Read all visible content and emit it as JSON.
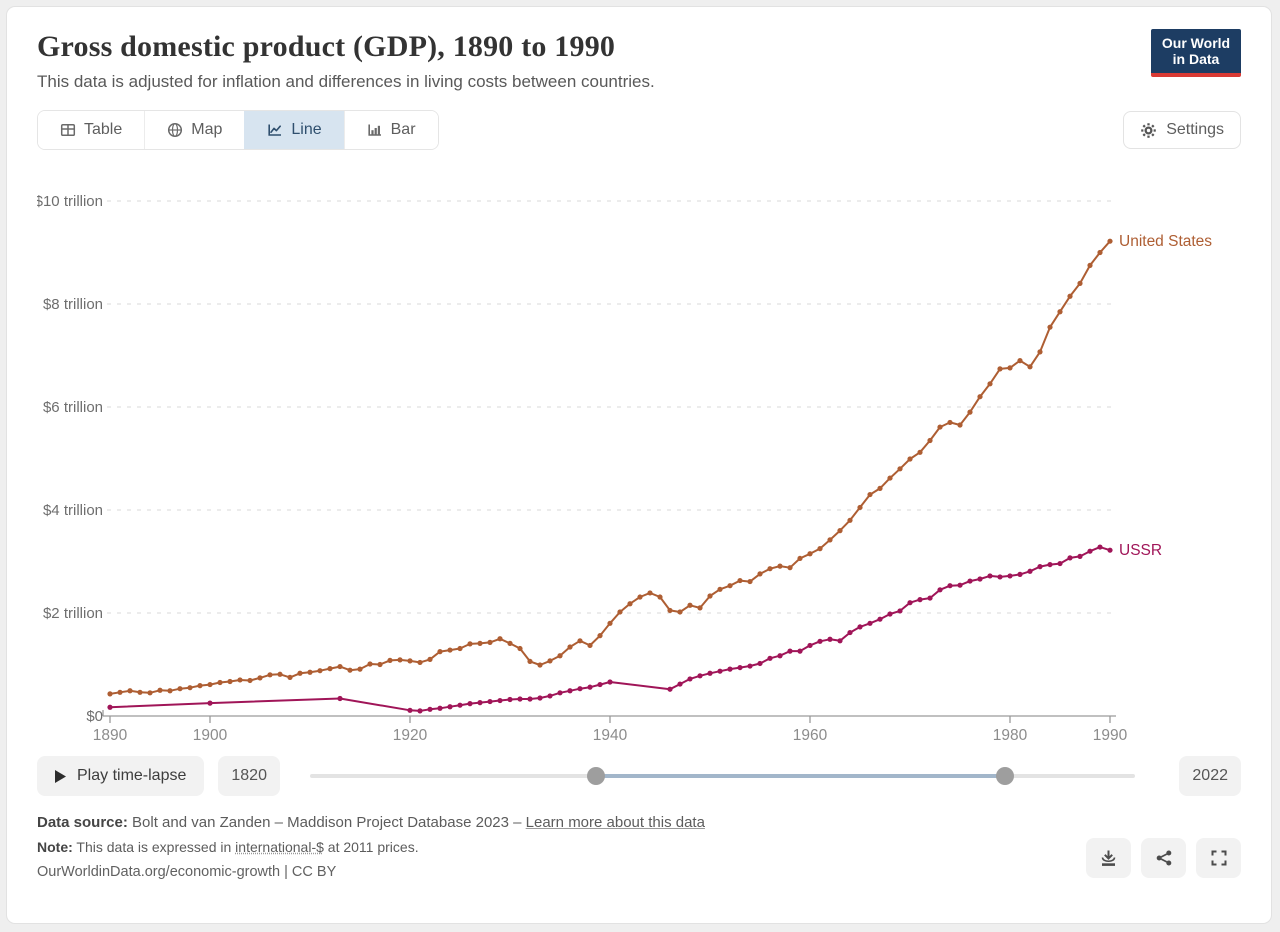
{
  "header": {
    "title": "Gross domestic product (GDP), 1890 to 1990",
    "subtitle": "This data is adjusted for inflation and differences in living costs between countries.",
    "logo": {
      "line1": "Our World",
      "line2": "in Data"
    }
  },
  "toolbar": {
    "tabs": [
      {
        "label": "Table",
        "icon": "table-icon",
        "active": false
      },
      {
        "label": "Map",
        "icon": "globe-icon",
        "active": false
      },
      {
        "label": "Line",
        "icon": "line-chart-icon",
        "active": true
      },
      {
        "label": "Bar",
        "icon": "bar-chart-icon",
        "active": false
      }
    ],
    "settings_label": "Settings"
  },
  "chart_data": {
    "type": "line",
    "title": "Gross domestic product (GDP), 1890 to 1990",
    "xlabel": "",
    "ylabel": "",
    "unit": "international-$ at 2011 prices",
    "xlim": [
      1890,
      1990
    ],
    "ylim": [
      0,
      10
    ],
    "grid": true,
    "legend_position": "end-of-line",
    "yticks": [
      {
        "value": 0,
        "label": "$0"
      },
      {
        "value": 2,
        "label": "$2 trillion"
      },
      {
        "value": 4,
        "label": "$4 trillion"
      },
      {
        "value": 6,
        "label": "$6 trillion"
      },
      {
        "value": 8,
        "label": "$8 trillion"
      },
      {
        "value": 10,
        "label": "$10 trillion"
      }
    ],
    "xticks": [
      1890,
      1900,
      1920,
      1940,
      1960,
      1980,
      1990
    ],
    "axis_color": "#9a9a9a",
    "grid_color": "#d9d9d9",
    "series": [
      {
        "name": "United States",
        "color": "#ae5e33",
        "points": [
          [
            1890,
            0.43
          ],
          [
            1891,
            0.46
          ],
          [
            1892,
            0.49
          ],
          [
            1893,
            0.46
          ],
          [
            1894,
            0.45
          ],
          [
            1895,
            0.5
          ],
          [
            1896,
            0.49
          ],
          [
            1897,
            0.53
          ],
          [
            1898,
            0.55
          ],
          [
            1899,
            0.59
          ],
          [
            1900,
            0.61
          ],
          [
            1901,
            0.65
          ],
          [
            1902,
            0.67
          ],
          [
            1903,
            0.7
          ],
          [
            1904,
            0.69
          ],
          [
            1905,
            0.74
          ],
          [
            1906,
            0.8
          ],
          [
            1907,
            0.81
          ],
          [
            1908,
            0.75
          ],
          [
            1909,
            0.83
          ],
          [
            1910,
            0.85
          ],
          [
            1911,
            0.88
          ],
          [
            1912,
            0.92
          ],
          [
            1913,
            0.96
          ],
          [
            1914,
            0.89
          ],
          [
            1915,
            0.91
          ],
          [
            1916,
            1.01
          ],
          [
            1917,
            1.0
          ],
          [
            1918,
            1.08
          ],
          [
            1919,
            1.09
          ],
          [
            1920,
            1.07
          ],
          [
            1921,
            1.04
          ],
          [
            1922,
            1.1
          ],
          [
            1923,
            1.25
          ],
          [
            1924,
            1.28
          ],
          [
            1925,
            1.31
          ],
          [
            1926,
            1.4
          ],
          [
            1927,
            1.41
          ],
          [
            1928,
            1.43
          ],
          [
            1929,
            1.5
          ],
          [
            1930,
            1.41
          ],
          [
            1931,
            1.31
          ],
          [
            1932,
            1.06
          ],
          [
            1933,
            0.99
          ],
          [
            1934,
            1.07
          ],
          [
            1935,
            1.17
          ],
          [
            1936,
            1.34
          ],
          [
            1937,
            1.46
          ],
          [
            1938,
            1.37
          ],
          [
            1939,
            1.56
          ],
          [
            1940,
            1.8
          ],
          [
            1941,
            2.02
          ],
          [
            1942,
            2.18
          ],
          [
            1943,
            2.31
          ],
          [
            1944,
            2.39
          ],
          [
            1945,
            2.31
          ],
          [
            1946,
            2.05
          ],
          [
            1947,
            2.02
          ],
          [
            1948,
            2.15
          ],
          [
            1949,
            2.1
          ],
          [
            1950,
            2.33
          ],
          [
            1951,
            2.46
          ],
          [
            1952,
            2.53
          ],
          [
            1953,
            2.63
          ],
          [
            1954,
            2.61
          ],
          [
            1955,
            2.76
          ],
          [
            1956,
            2.86
          ],
          [
            1957,
            2.91
          ],
          [
            1958,
            2.88
          ],
          [
            1959,
            3.06
          ],
          [
            1960,
            3.15
          ],
          [
            1961,
            3.25
          ],
          [
            1962,
            3.42
          ],
          [
            1963,
            3.6
          ],
          [
            1964,
            3.8
          ],
          [
            1965,
            4.05
          ],
          [
            1966,
            4.3
          ],
          [
            1967,
            4.42
          ],
          [
            1968,
            4.62
          ],
          [
            1969,
            4.8
          ],
          [
            1970,
            4.99
          ],
          [
            1971,
            5.12
          ],
          [
            1972,
            5.35
          ],
          [
            1973,
            5.61
          ],
          [
            1974,
            5.7
          ],
          [
            1975,
            5.65
          ],
          [
            1976,
            5.9
          ],
          [
            1977,
            6.2
          ],
          [
            1978,
            6.45
          ],
          [
            1979,
            6.74
          ],
          [
            1980,
            6.76
          ],
          [
            1981,
            6.9
          ],
          [
            1982,
            6.78
          ],
          [
            1983,
            7.07
          ],
          [
            1984,
            7.55
          ],
          [
            1985,
            7.85
          ],
          [
            1986,
            8.15
          ],
          [
            1987,
            8.4
          ],
          [
            1988,
            8.75
          ],
          [
            1989,
            9.0
          ],
          [
            1990,
            9.22
          ]
        ]
      },
      {
        "name": "USSR",
        "color": "#a01558",
        "points": [
          [
            1890,
            0.17
          ],
          [
            1900,
            0.25
          ],
          [
            1913,
            0.34
          ],
          [
            1920,
            0.11
          ],
          [
            1921,
            0.1
          ],
          [
            1922,
            0.13
          ],
          [
            1923,
            0.15
          ],
          [
            1924,
            0.18
          ],
          [
            1925,
            0.21
          ],
          [
            1926,
            0.24
          ],
          [
            1927,
            0.26
          ],
          [
            1928,
            0.28
          ],
          [
            1929,
            0.3
          ],
          [
            1930,
            0.32
          ],
          [
            1931,
            0.33
          ],
          [
            1932,
            0.33
          ],
          [
            1933,
            0.35
          ],
          [
            1934,
            0.39
          ],
          [
            1935,
            0.45
          ],
          [
            1936,
            0.49
          ],
          [
            1937,
            0.53
          ],
          [
            1938,
            0.56
          ],
          [
            1939,
            0.61
          ],
          [
            1940,
            0.66
          ],
          [
            1946,
            0.52
          ],
          [
            1947,
            0.62
          ],
          [
            1948,
            0.72
          ],
          [
            1949,
            0.78
          ],
          [
            1950,
            0.83
          ],
          [
            1951,
            0.87
          ],
          [
            1952,
            0.91
          ],
          [
            1953,
            0.94
          ],
          [
            1954,
            0.97
          ],
          [
            1955,
            1.02
          ],
          [
            1956,
            1.12
          ],
          [
            1957,
            1.17
          ],
          [
            1958,
            1.26
          ],
          [
            1959,
            1.26
          ],
          [
            1960,
            1.37
          ],
          [
            1961,
            1.45
          ],
          [
            1962,
            1.49
          ],
          [
            1963,
            1.46
          ],
          [
            1964,
            1.62
          ],
          [
            1965,
            1.73
          ],
          [
            1966,
            1.8
          ],
          [
            1967,
            1.88
          ],
          [
            1968,
            1.98
          ],
          [
            1969,
            2.04
          ],
          [
            1970,
            2.2
          ],
          [
            1971,
            2.26
          ],
          [
            1972,
            2.29
          ],
          [
            1973,
            2.45
          ],
          [
            1974,
            2.53
          ],
          [
            1975,
            2.54
          ],
          [
            1976,
            2.62
          ],
          [
            1977,
            2.66
          ],
          [
            1978,
            2.72
          ],
          [
            1979,
            2.7
          ],
          [
            1980,
            2.72
          ],
          [
            1981,
            2.75
          ],
          [
            1982,
            2.81
          ],
          [
            1983,
            2.9
          ],
          [
            1984,
            2.94
          ],
          [
            1985,
            2.96
          ],
          [
            1986,
            3.07
          ],
          [
            1987,
            3.1
          ],
          [
            1988,
            3.2
          ],
          [
            1989,
            3.28
          ],
          [
            1990,
            3.22
          ]
        ]
      }
    ]
  },
  "timeline": {
    "play_label": "Play time-lapse",
    "min_year": 1820,
    "max_year": 2022,
    "min_year_label": "1820",
    "max_year_label": "2022",
    "handle_start_year": 1890,
    "handle_end_year": 1990,
    "active_color": "#a2b6ca"
  },
  "footer": {
    "source_label": "Data source:",
    "source_text": "Bolt and van Zanden – Maddison Project Database 2023 –",
    "source_link": "Learn more about this data",
    "note_label": "Note:",
    "note_pre": "This data is expressed in ",
    "note_term": "international-$",
    "note_post": " at 2011 prices.",
    "citation": "OurWorldinData.org/economic-growth | CC BY",
    "actions": [
      "download-icon",
      "share-icon",
      "fullscreen-icon"
    ]
  }
}
